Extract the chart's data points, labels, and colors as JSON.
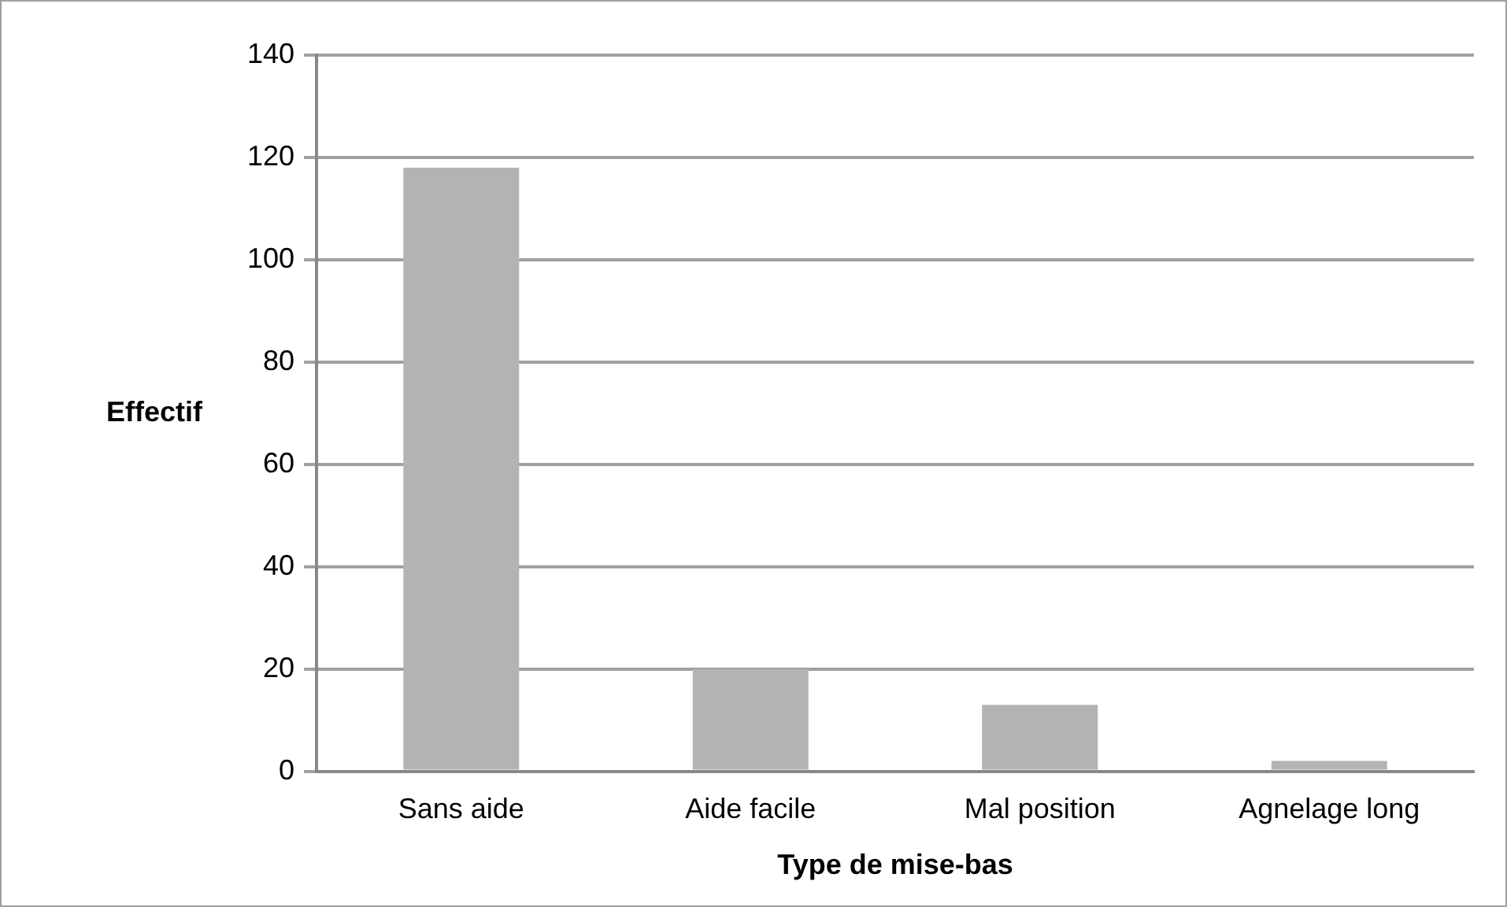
{
  "chart_data": {
    "type": "bar",
    "xlabel": "Type de mise-bas",
    "ylabel": "Effectif",
    "categories": [
      "Sans aide",
      "Aide facile",
      "Mal position",
      "Agnelage long"
    ],
    "values": [
      118,
      20,
      13,
      2
    ],
    "color": "#b3b3b3",
    "ylim": [
      0,
      140
    ],
    "yticks": [
      0,
      20,
      40,
      60,
      80,
      100,
      120,
      140
    ],
    "grid": "y",
    "legend": false
  }
}
